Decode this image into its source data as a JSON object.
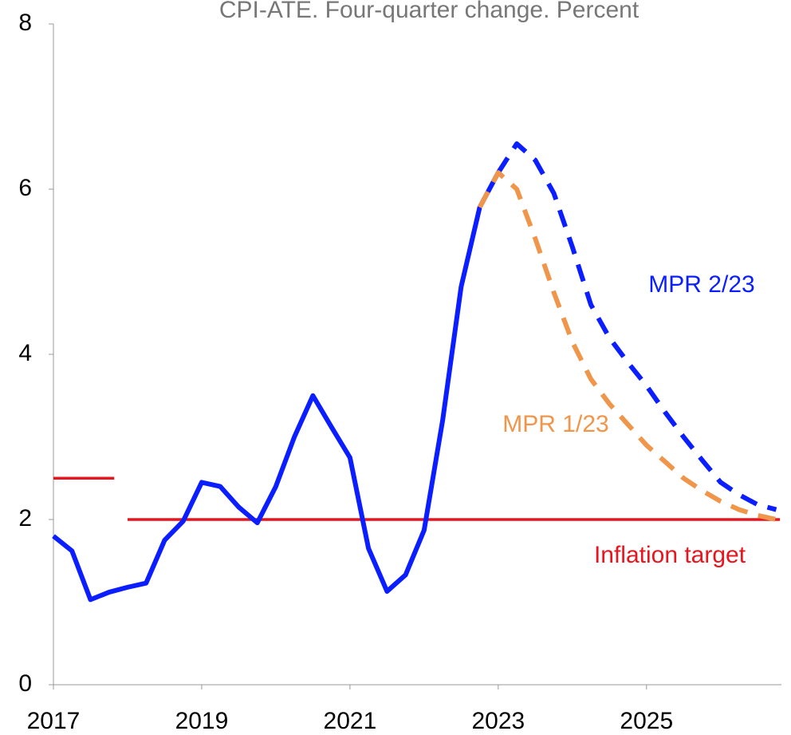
{
  "chart_data": {
    "type": "line",
    "title": "CPI-ATE. Four-quarter change. Percent",
    "x": [
      2017,
      2017.25,
      2017.5,
      2017.75,
      2018,
      2018.25,
      2018.5,
      2018.75,
      2019,
      2019.25,
      2019.5,
      2019.75,
      2020,
      2020.25,
      2020.5,
      2020.75,
      2021,
      2021.25,
      2021.5,
      2021.75,
      2022,
      2022.25,
      2022.5,
      2022.75,
      2023,
      2023.25,
      2023.5,
      2023.75,
      2024,
      2024.25,
      2024.5,
      2024.75,
      2025,
      2025.25,
      2025.5,
      2025.75,
      2026,
      2026.25,
      2026.5,
      2026.75
    ],
    "series": [
      {
        "color": "#0a1eff",
        "dashed": false,
        "values": [
          1.8,
          1.62,
          1.03,
          1.12,
          1.18,
          1.23,
          1.75,
          1.98,
          2.45,
          2.4,
          2.15,
          1.96,
          2.4,
          3.0,
          3.5,
          3.12,
          2.75,
          1.65,
          1.13,
          1.33,
          1.87,
          3.2,
          4.82,
          5.78,
          6.2,
          null,
          null,
          null,
          null,
          null,
          null,
          null,
          null,
          null,
          null,
          null,
          null,
          null,
          null,
          null
        ]
      },
      {
        "name": "MPR 2/23",
        "color": "#0a1eff",
        "dashed": true,
        "values": [
          null,
          null,
          null,
          null,
          null,
          null,
          null,
          null,
          null,
          null,
          null,
          null,
          null,
          null,
          null,
          null,
          null,
          null,
          null,
          null,
          null,
          null,
          null,
          null,
          6.2,
          6.55,
          6.35,
          5.95,
          5.3,
          4.6,
          4.2,
          3.9,
          3.62,
          3.3,
          3.0,
          2.72,
          2.45,
          2.3,
          2.18,
          2.12
        ]
      },
      {
        "name": "MPR 1/23",
        "color": "#f0964b",
        "dashed": true,
        "values": [
          null,
          null,
          null,
          null,
          null,
          null,
          null,
          null,
          null,
          null,
          null,
          null,
          null,
          null,
          null,
          null,
          null,
          null,
          null,
          null,
          null,
          null,
          null,
          5.78,
          6.2,
          6.0,
          5.4,
          4.75,
          4.15,
          3.7,
          3.4,
          3.15,
          2.9,
          2.7,
          2.5,
          2.35,
          2.22,
          2.12,
          2.05,
          2.0
        ]
      }
    ],
    "target": {
      "name": "Inflation target",
      "color": "#e8141e",
      "lines": [
        {
          "x": [
            2017,
            2017.82
          ],
          "value": 2.5
        },
        {
          "x": [
            2018,
            2026.8
          ],
          "value": 2
        }
      ]
    },
    "xlim": [
      2017,
      2026.82
    ],
    "xticks": [
      2017,
      2019,
      2021,
      2023,
      2025
    ],
    "ylim": [
      0,
      8
    ],
    "yticks": [
      0,
      2,
      4,
      6,
      8
    ],
    "grid": false
  }
}
